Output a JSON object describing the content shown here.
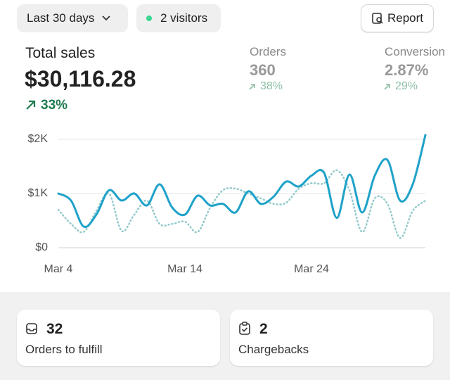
{
  "header": {
    "date_range": "Last 30 days",
    "visitors": "2 visitors",
    "report": "Report"
  },
  "metrics": [
    {
      "label": "Total sales",
      "value": "$30,116.28",
      "change": "33%"
    },
    {
      "label": "Orders",
      "value": "360",
      "change": "38%"
    },
    {
      "label": "Conversion",
      "value": "2.87%",
      "change": "29%"
    }
  ],
  "chart_data": {
    "type": "line",
    "categories": [
      "Mar 4",
      null,
      null,
      null,
      null,
      null,
      null,
      null,
      null,
      null,
      "Mar 14",
      null,
      null,
      null,
      null,
      null,
      null,
      null,
      null,
      null,
      "Mar 24",
      null,
      null,
      null,
      null,
      null,
      null,
      null,
      null,
      null
    ],
    "series": [
      {
        "color": "#1fa2c9",
        "style": "solid",
        "values": [
          1000,
          870,
          390,
          610,
          1060,
          870,
          1000,
          780,
          1170,
          740,
          610,
          960,
          780,
          810,
          650,
          1040,
          810,
          940,
          1220,
          1130,
          1330,
          1380,
          550,
          1350,
          650,
          1330,
          1620,
          870,
          1170,
          2080
        ]
      },
      {
        "color": "#93c9cb",
        "style": "dotted",
        "values": [
          700,
          440,
          290,
          680,
          1000,
          310,
          610,
          870,
          440,
          440,
          480,
          290,
          740,
          1060,
          1090,
          1000,
          910,
          810,
          830,
          1090,
          1190,
          1190,
          1430,
          1060,
          290,
          910,
          810,
          180,
          680,
          870
        ]
      }
    ],
    "ylim": [
      0,
      2000
    ],
    "yticks": [
      {
        "value": 0,
        "label": "$0"
      },
      {
        "value": 1000,
        "label": "$1K"
      },
      {
        "value": 2000,
        "label": "$2K"
      }
    ],
    "grid": true
  },
  "cards": [
    {
      "value": "32",
      "label": "Orders to fulfill"
    },
    {
      "value": "2",
      "label": "Chargebacks"
    }
  ]
}
